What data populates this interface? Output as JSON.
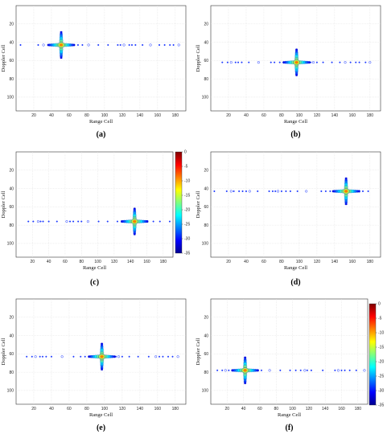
{
  "panels": [
    {
      "label": "(a)",
      "xlabel": "Range Cell",
      "ylabel": "Doppler Cell"
    },
    {
      "label": "(b)",
      "xlabel": "Range Cell",
      "ylabel": "Doppler Cell"
    },
    {
      "label": "(c)",
      "xlabel": "Range Cell",
      "ylabel": "Doppler Cell"
    },
    {
      "label": "(d)",
      "xlabel": "Range Cell",
      "ylabel": "Doppler Cell"
    },
    {
      "label": "(e)",
      "xlabel": "Range Cell",
      "ylabel": "Doppler Cell"
    },
    {
      "label": "(f)",
      "xlabel": "Range Cell",
      "ylabel": "Doppler Cell"
    }
  ],
  "chart_data": [
    {
      "type": "heatmap",
      "title": "(a)",
      "xlabel": "Range Cell",
      "ylabel": "Doppler Cell",
      "xlim": [
        0,
        192
      ],
      "ylim": [
        0,
        115
      ],
      "yreversed": true,
      "grid": true,
      "xticks": [
        20,
        40,
        60,
        80,
        100,
        120,
        140,
        160,
        180
      ],
      "yticks": [
        20,
        40,
        60,
        80,
        100
      ],
      "target": {
        "range": 51,
        "doppler": 43
      },
      "sidelobe_row_doppler": 43,
      "sidelobe_ranges": [
        5,
        25,
        31,
        36,
        39,
        42,
        45,
        47,
        63,
        66,
        70,
        75,
        82,
        93,
        104,
        115,
        118,
        122,
        128,
        131,
        135,
        143,
        152,
        162,
        168,
        174,
        178,
        184
      ]
    },
    {
      "type": "heatmap",
      "title": "(b)",
      "xlabel": "Range Cell",
      "ylabel": "Doppler Cell",
      "xlim": [
        0,
        192
      ],
      "ylim": [
        0,
        115
      ],
      "yreversed": true,
      "grid": true,
      "xticks": [
        20,
        40,
        60,
        80,
        100,
        120,
        140,
        160,
        180
      ],
      "yticks": [
        20,
        40,
        60,
        80,
        100
      ],
      "target": {
        "range": 97,
        "doppler": 62
      },
      "sidelobe_row_doppler": 62,
      "sidelobe_ranges": [
        13,
        19,
        23,
        28,
        31,
        35,
        43,
        54,
        68,
        72,
        78,
        82,
        85,
        88,
        106,
        109,
        113,
        116,
        120,
        127,
        137,
        146,
        152,
        158,
        164,
        168,
        175,
        180
      ]
    },
    {
      "type": "heatmap",
      "title": "(c)",
      "xlabel": "Range Cell",
      "ylabel": "Doppler Cell",
      "xlim": [
        0,
        192
      ],
      "ylim": [
        0,
        115
      ],
      "yreversed": true,
      "grid": true,
      "xticks": [
        20,
        40,
        60,
        80,
        100,
        120,
        140,
        160,
        180
      ],
      "yticks": [
        20,
        40,
        60,
        80,
        100
      ],
      "target": {
        "range": 145,
        "doppler": 76
      },
      "sidelobe_row_doppler": 76,
      "sidelobe_ranges": [
        15,
        21,
        27,
        30,
        33,
        40,
        50,
        62,
        66,
        70,
        76,
        80,
        88,
        101,
        112,
        124,
        131,
        134,
        138,
        141,
        153,
        156,
        160,
        168,
        176,
        188
      ],
      "colorbar": {
        "min": -35,
        "max": 0,
        "ticks": [
          0,
          -5,
          -10,
          -15,
          -20,
          -25,
          -30,
          -35
        ],
        "colormap": "jet"
      }
    },
    {
      "type": "heatmap",
      "title": "(d)",
      "xlabel": "Range Cell",
      "ylabel": "Doppler Cell",
      "xlim": [
        0,
        192
      ],
      "ylim": [
        0,
        115
      ],
      "yreversed": true,
      "grid": true,
      "xticks": [
        20,
        40,
        60,
        80,
        100,
        120,
        140,
        160,
        180
      ],
      "yticks": [
        20,
        40,
        60,
        80,
        100
      ],
      "target": {
        "range": 153,
        "doppler": 43
      },
      "sidelobe_row_doppler": 43,
      "sidelobe_ranges": [
        4,
        18,
        23,
        26,
        32,
        36,
        40,
        44,
        53,
        66,
        70,
        73,
        76,
        80,
        85,
        90,
        98,
        108,
        125,
        130,
        135,
        138,
        142,
        145,
        148,
        161,
        164,
        168,
        172,
        178
      ]
    },
    {
      "type": "heatmap",
      "title": "(e)",
      "xlabel": "Range Cell",
      "ylabel": "Doppler Cell",
      "xlim": [
        0,
        192
      ],
      "ylim": [
        0,
        115
      ],
      "yreversed": true,
      "grid": true,
      "xticks": [
        20,
        40,
        60,
        80,
        100,
        120,
        140,
        160,
        180
      ],
      "yticks": [
        20,
        40,
        60,
        80,
        100
      ],
      "target": {
        "range": 97,
        "doppler": 63
      },
      "sidelobe_row_doppler": 63,
      "sidelobe_ranges": [
        12,
        18,
        22,
        27,
        30,
        34,
        40,
        52,
        65,
        73,
        78,
        82,
        85,
        88,
        106,
        109,
        113,
        116,
        120,
        128,
        138,
        150,
        158,
        162,
        166,
        172,
        177,
        183
      ]
    },
    {
      "type": "heatmap",
      "title": "(f)",
      "xlabel": "Range Cell",
      "ylabel": "Doppler Cell",
      "xlim": [
        0,
        192
      ],
      "ylim": [
        0,
        115
      ],
      "yreversed": true,
      "grid": true,
      "xticks": [
        20,
        40,
        60,
        80,
        100,
        120,
        140,
        160,
        180
      ],
      "yticks": [
        20,
        40,
        60,
        80,
        100
      ],
      "target": {
        "range": 42,
        "doppler": 78
      },
      "sidelobe_row_doppler": 78,
      "sidelobe_ranges": [
        8,
        14,
        18,
        22,
        26,
        30,
        33,
        36,
        48,
        51,
        56,
        62,
        72,
        85,
        97,
        104,
        110,
        115,
        118,
        123,
        137,
        152,
        156,
        160,
        164,
        170,
        178,
        188
      ],
      "colorbar": {
        "min": -35,
        "max": 0,
        "ticks": [
          0,
          -5,
          -10,
          -15,
          -20,
          -25,
          -30,
          -35
        ],
        "colormap": "jet"
      }
    }
  ]
}
